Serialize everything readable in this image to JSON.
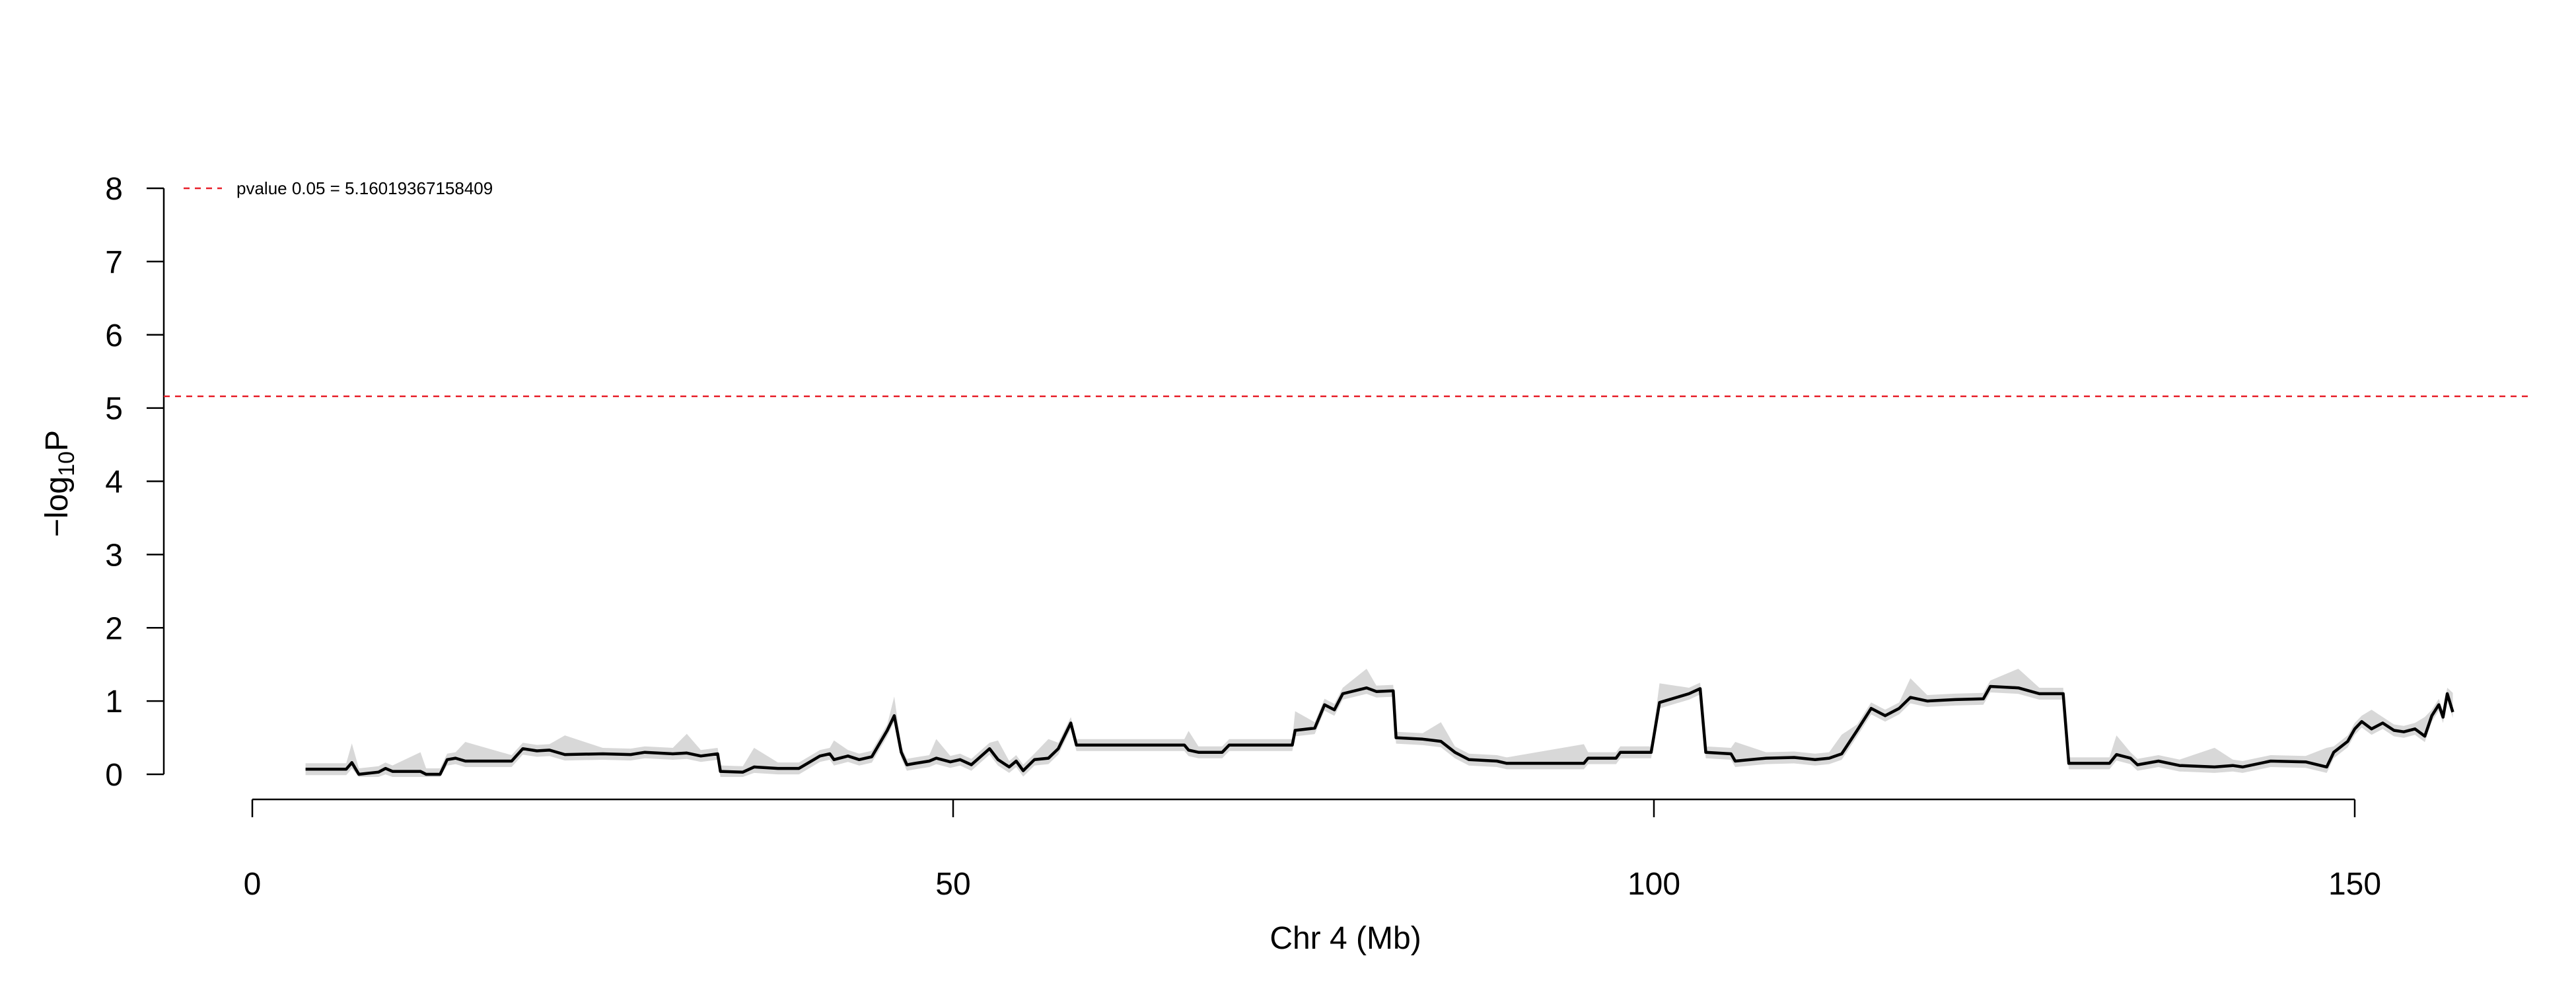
{
  "chart_data": {
    "type": "line",
    "ylabel_base": "−log",
    "ylabel_sub": "10",
    "ylabel_tail": "P",
    "xlabel": "Chr 4 (Mb)",
    "ylim": [
      0,
      8
    ],
    "xlim": [
      0,
      160
    ],
    "yticks": [
      0,
      1,
      2,
      3,
      4,
      5,
      6,
      7,
      8
    ],
    "xticks": [
      0,
      50,
      100,
      150
    ],
    "grid": false,
    "legend_position": "top-left",
    "threshold": {
      "label": "pvalue 0.05 = 5.16019367158409",
      "value": 5.16019367158409,
      "color": "#e8202a"
    },
    "series": [
      {
        "line_color": "#000000",
        "band_color": "#d8d8d8",
        "points": [
          [
            3.8,
            0.07
          ],
          [
            6.7,
            0.07
          ],
          [
            7.1,
            0.16
          ],
          [
            7.6,
            0.0
          ],
          [
            9.0,
            0.03
          ],
          [
            9.5,
            0.08
          ],
          [
            10.0,
            0.04
          ],
          [
            12.0,
            0.04
          ],
          [
            12.4,
            0.0
          ],
          [
            13.4,
            0.0
          ],
          [
            13.9,
            0.2
          ],
          [
            14.5,
            0.22
          ],
          [
            15.2,
            0.18
          ],
          [
            18.5,
            0.18
          ],
          [
            19.3,
            0.35
          ],
          [
            20.3,
            0.32
          ],
          [
            21.2,
            0.33
          ],
          [
            22.3,
            0.27
          ],
          [
            25.0,
            0.28
          ],
          [
            27.0,
            0.27
          ],
          [
            28.0,
            0.3
          ],
          [
            30.0,
            0.28
          ],
          [
            31.0,
            0.29
          ],
          [
            32.0,
            0.25
          ],
          [
            33.2,
            0.28
          ],
          [
            33.4,
            0.04
          ],
          [
            35.0,
            0.03
          ],
          [
            35.8,
            0.1
          ],
          [
            37.5,
            0.08
          ],
          [
            39.0,
            0.08
          ],
          [
            40.5,
            0.25
          ],
          [
            41.2,
            0.28
          ],
          [
            41.5,
            0.2
          ],
          [
            42.5,
            0.25
          ],
          [
            43.3,
            0.2
          ],
          [
            44.2,
            0.24
          ],
          [
            45.3,
            0.6
          ],
          [
            45.8,
            0.8
          ],
          [
            46.3,
            0.3
          ],
          [
            46.7,
            0.13
          ],
          [
            47.3,
            0.15
          ],
          [
            48.3,
            0.18
          ],
          [
            48.8,
            0.22
          ],
          [
            49.8,
            0.17
          ],
          [
            50.5,
            0.2
          ],
          [
            51.3,
            0.13
          ],
          [
            52.6,
            0.35
          ],
          [
            53.2,
            0.2
          ],
          [
            54.0,
            0.1
          ],
          [
            54.5,
            0.18
          ],
          [
            55.0,
            0.05
          ],
          [
            55.8,
            0.2
          ],
          [
            56.8,
            0.22
          ],
          [
            57.5,
            0.35
          ],
          [
            58.4,
            0.7
          ],
          [
            58.8,
            0.4
          ],
          [
            66.5,
            0.4
          ],
          [
            66.8,
            0.33
          ],
          [
            67.5,
            0.3
          ],
          [
            69.2,
            0.3
          ],
          [
            69.7,
            0.4
          ],
          [
            74.2,
            0.4
          ],
          [
            74.4,
            0.6
          ],
          [
            75.8,
            0.63
          ],
          [
            76.5,
            0.95
          ],
          [
            77.2,
            0.88
          ],
          [
            77.8,
            1.1
          ],
          [
            79.5,
            1.18
          ],
          [
            80.2,
            1.13
          ],
          [
            81.4,
            1.14
          ],
          [
            81.6,
            0.5
          ],
          [
            83.5,
            0.48
          ],
          [
            84.8,
            0.45
          ],
          [
            85.8,
            0.3
          ],
          [
            86.8,
            0.2
          ],
          [
            88.8,
            0.18
          ],
          [
            89.5,
            0.15
          ],
          [
            95.0,
            0.15
          ],
          [
            95.3,
            0.22
          ],
          [
            97.3,
            0.22
          ],
          [
            97.6,
            0.3
          ],
          [
            99.8,
            0.3
          ],
          [
            100.4,
            0.98
          ],
          [
            102.5,
            1.1
          ],
          [
            103.3,
            1.17
          ],
          [
            103.7,
            0.3
          ],
          [
            105.5,
            0.28
          ],
          [
            105.8,
            0.18
          ],
          [
            108.0,
            0.22
          ],
          [
            110.0,
            0.23
          ],
          [
            111.5,
            0.2
          ],
          [
            112.5,
            0.22
          ],
          [
            113.4,
            0.28
          ],
          [
            114.5,
            0.6
          ],
          [
            115.5,
            0.9
          ],
          [
            116.5,
            0.8
          ],
          [
            117.5,
            0.9
          ],
          [
            118.3,
            1.05
          ],
          [
            119.5,
            1.0
          ],
          [
            121.5,
            1.02
          ],
          [
            123.5,
            1.03
          ],
          [
            124.0,
            1.2
          ],
          [
            126.0,
            1.18
          ],
          [
            127.5,
            1.1
          ],
          [
            129.2,
            1.1
          ],
          [
            129.6,
            0.15
          ],
          [
            132.5,
            0.15
          ],
          [
            133.0,
            0.27
          ],
          [
            134.0,
            0.22
          ],
          [
            134.5,
            0.13
          ],
          [
            136.0,
            0.18
          ],
          [
            137.5,
            0.12
          ],
          [
            140.0,
            0.1
          ],
          [
            141.3,
            0.12
          ],
          [
            142.0,
            0.1
          ],
          [
            144.0,
            0.18
          ],
          [
            146.5,
            0.17
          ],
          [
            148.0,
            0.1
          ],
          [
            148.5,
            0.3
          ],
          [
            149.5,
            0.45
          ],
          [
            150.0,
            0.62
          ],
          [
            150.5,
            0.72
          ],
          [
            151.2,
            0.62
          ],
          [
            152.0,
            0.7
          ],
          [
            152.8,
            0.6
          ],
          [
            153.5,
            0.58
          ],
          [
            154.3,
            0.62
          ],
          [
            155.0,
            0.52
          ],
          [
            155.5,
            0.8
          ],
          [
            156.0,
            0.95
          ],
          [
            156.3,
            0.78
          ],
          [
            156.6,
            1.1
          ],
          [
            157.0,
            0.85
          ]
        ]
      }
    ]
  }
}
